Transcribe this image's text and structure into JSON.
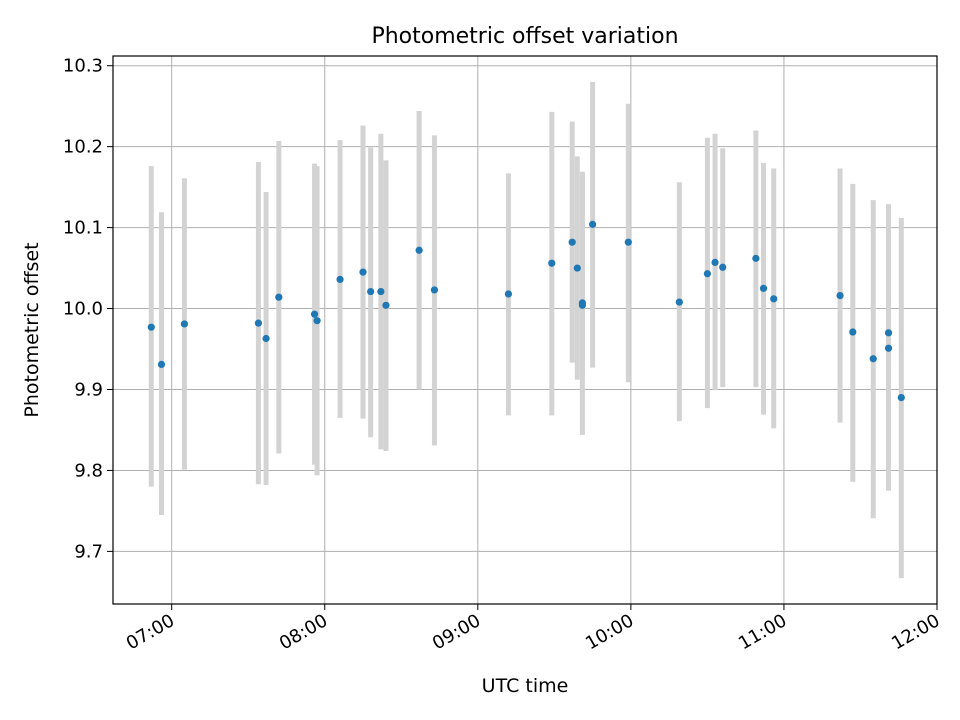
{
  "chart_data": {
    "type": "scatter",
    "title": "Photometric offset variation",
    "xlabel": "UTC time",
    "ylabel": "Photometric offset",
    "x_tick_labels": [
      "07:00",
      "08:00",
      "09:00",
      "10:00",
      "11:00",
      "12:00"
    ],
    "y_tick_labels": [
      "9.7",
      "9.8",
      "9.9",
      "10.0",
      "10.1",
      "10.2",
      "10.3"
    ],
    "xlim": [
      "06:37",
      "12:00"
    ],
    "ylim": [
      9.635,
      10.312
    ],
    "grid": true,
    "point_color": "#1f77b4",
    "errorbar_color": "#d3d3d3",
    "series": [
      {
        "points": [
          {
            "x": "06:52",
            "y": 9.977,
            "ylow": 9.78,
            "yhigh": 10.176
          },
          {
            "x": "06:56",
            "y": 9.931,
            "ylow": 9.745,
            "yhigh": 10.119
          },
          {
            "x": "07:05",
            "y": 9.981,
            "ylow": 9.801,
            "yhigh": 10.161
          },
          {
            "x": "07:34",
            "y": 9.982,
            "ylow": 9.783,
            "yhigh": 10.181
          },
          {
            "x": "07:37",
            "y": 9.963,
            "ylow": 9.782,
            "yhigh": 10.144
          },
          {
            "x": "07:42",
            "y": 10.014,
            "ylow": 9.821,
            "yhigh": 10.207
          },
          {
            "x": "07:56",
            "y": 9.993,
            "ylow": 9.807,
            "yhigh": 10.179
          },
          {
            "x": "07:57",
            "y": 9.985,
            "ylow": 9.794,
            "yhigh": 10.176
          },
          {
            "x": "08:06",
            "y": 10.036,
            "ylow": 9.865,
            "yhigh": 10.208
          },
          {
            "x": "08:15",
            "y": 10.045,
            "ylow": 9.864,
            "yhigh": 10.226
          },
          {
            "x": "08:18",
            "y": 10.021,
            "ylow": 9.841,
            "yhigh": 10.199
          },
          {
            "x": "08:22",
            "y": 10.021,
            "ylow": 9.826,
            "yhigh": 10.216
          },
          {
            "x": "08:24",
            "y": 10.004,
            "ylow": 9.824,
            "yhigh": 10.183
          },
          {
            "x": "08:37",
            "y": 10.072,
            "ylow": 9.9,
            "yhigh": 10.244
          },
          {
            "x": "08:43",
            "y": 10.023,
            "ylow": 9.831,
            "yhigh": 10.214
          },
          {
            "x": "09:12",
            "y": 10.018,
            "ylow": 9.868,
            "yhigh": 10.167
          },
          {
            "x": "09:29",
            "y": 10.056,
            "ylow": 9.868,
            "yhigh": 10.243
          },
          {
            "x": "09:37",
            "y": 10.082,
            "ylow": 9.933,
            "yhigh": 10.231
          },
          {
            "x": "09:39",
            "y": 10.05,
            "ylow": 9.912,
            "yhigh": 10.188
          },
          {
            "x": "09:41",
            "y": 10.007,
            "ylow": 9.844,
            "yhigh": 10.169
          },
          {
            "x": "09:41",
            "y": 10.004,
            "ylow": 9.916,
            "yhigh": 10.164
          },
          {
            "x": "09:45",
            "y": 10.104,
            "ylow": 9.927,
            "yhigh": 10.28
          },
          {
            "x": "09:59",
            "y": 10.082,
            "ylow": 9.909,
            "yhigh": 10.253
          },
          {
            "x": "10:19",
            "y": 10.008,
            "ylow": 9.861,
            "yhigh": 10.156
          },
          {
            "x": "10:30",
            "y": 10.043,
            "ylow": 9.877,
            "yhigh": 10.211
          },
          {
            "x": "10:33",
            "y": 10.057,
            "ylow": 9.899,
            "yhigh": 10.216
          },
          {
            "x": "10:36",
            "y": 10.051,
            "ylow": 9.903,
            "yhigh": 10.198
          },
          {
            "x": "10:49",
            "y": 10.062,
            "ylow": 9.903,
            "yhigh": 10.22
          },
          {
            "x": "10:52",
            "y": 10.025,
            "ylow": 9.869,
            "yhigh": 10.18
          },
          {
            "x": "10:56",
            "y": 10.012,
            "ylow": 9.852,
            "yhigh": 10.173
          },
          {
            "x": "11:22",
            "y": 10.016,
            "ylow": 9.859,
            "yhigh": 10.173
          },
          {
            "x": "11:27",
            "y": 9.971,
            "ylow": 9.786,
            "yhigh": 10.154
          },
          {
            "x": "11:35",
            "y": 9.938,
            "ylow": 9.741,
            "yhigh": 10.134
          },
          {
            "x": "11:41",
            "y": 9.97,
            "ylow": 9.928,
            "yhigh": 10.009
          },
          {
            "x": "11:41",
            "y": 9.951,
            "ylow": 9.775,
            "yhigh": 10.129
          },
          {
            "x": "11:46",
            "y": 9.89,
            "ylow": 9.667,
            "yhigh": 10.112
          }
        ]
      }
    ]
  }
}
